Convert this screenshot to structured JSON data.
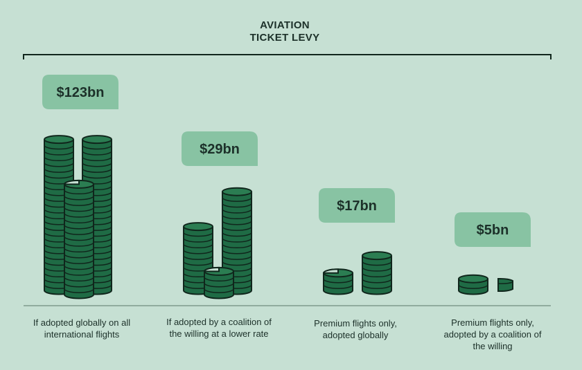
{
  "chart_data": {
    "type": "bar",
    "title_lines": [
      "AVIATION",
      "TICKET LEVY"
    ],
    "unit": "$bn",
    "categories": [
      "If adopted globally on all international flights",
      "If adopted by a coalition of the willing at a lower rate",
      "Premium flights only, adopted globally",
      "Premium flights only, adopted by a coalition of the willing"
    ],
    "category_lines": [
      [
        "If adopted globally on all",
        "international flights"
      ],
      [
        "If adopted by a coalition of",
        "the willing at a lower rate"
      ],
      [
        "Premium flights only,",
        "adopted globally"
      ],
      [
        "Premium flights only,",
        "adopted by a coalition of",
        "the willing"
      ]
    ],
    "values": [
      123,
      29,
      17,
      5
    ],
    "value_labels": [
      "$123bn",
      "$29bn",
      "$17bn",
      "$5bn"
    ],
    "colors": {
      "background": "#c6e0d3",
      "coin": "#1f6b45",
      "coin_top": "#2b7d52",
      "outline": "#10261c",
      "badge": "#88c3a3",
      "text": "#1c3029"
    }
  }
}
